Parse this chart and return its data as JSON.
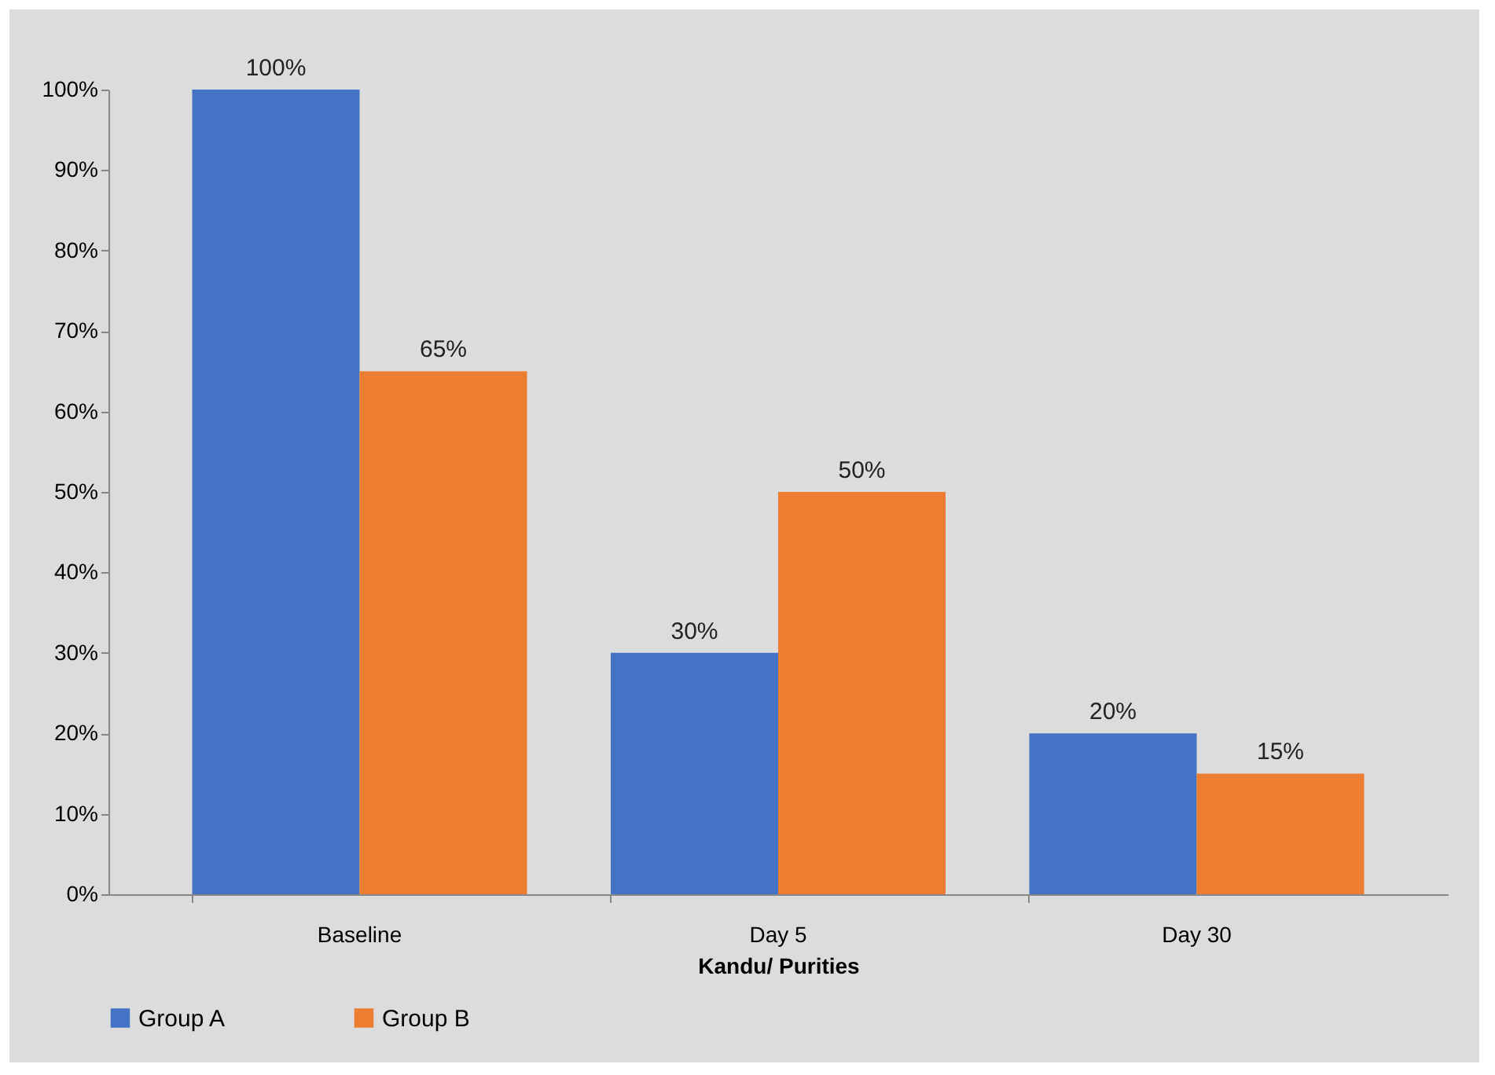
{
  "chart_data": {
    "type": "bar",
    "xlabel": "Kandu/ Purities",
    "categories": [
      "Baseline",
      "Day 5",
      "Day 30"
    ],
    "series": [
      {
        "name": "Group A",
        "color": "#4472c4",
        "values": [
          100,
          30,
          20
        ],
        "value_labels": [
          "100%",
          "30%",
          "20%"
        ]
      },
      {
        "name": "Group B",
        "color": "#ed7d31",
        "values": [
          65,
          50,
          15
        ],
        "value_labels": [
          "65%",
          "50%",
          "15%"
        ]
      }
    ],
    "ylim": [
      0,
      100
    ],
    "yticks": [
      {
        "value": 0,
        "label": "0%"
      },
      {
        "value": 10,
        "label": "10%"
      },
      {
        "value": 20,
        "label": "20%"
      },
      {
        "value": 30,
        "label": "30%"
      },
      {
        "value": 40,
        "label": "40%"
      },
      {
        "value": 50,
        "label": "50%"
      },
      {
        "value": 60,
        "label": "60%"
      },
      {
        "value": 70,
        "label": "70%"
      },
      {
        "value": 80,
        "label": "80%"
      },
      {
        "value": 90,
        "label": "90%"
      },
      {
        "value": 100,
        "label": "100%"
      }
    ],
    "legend": "bottom"
  }
}
